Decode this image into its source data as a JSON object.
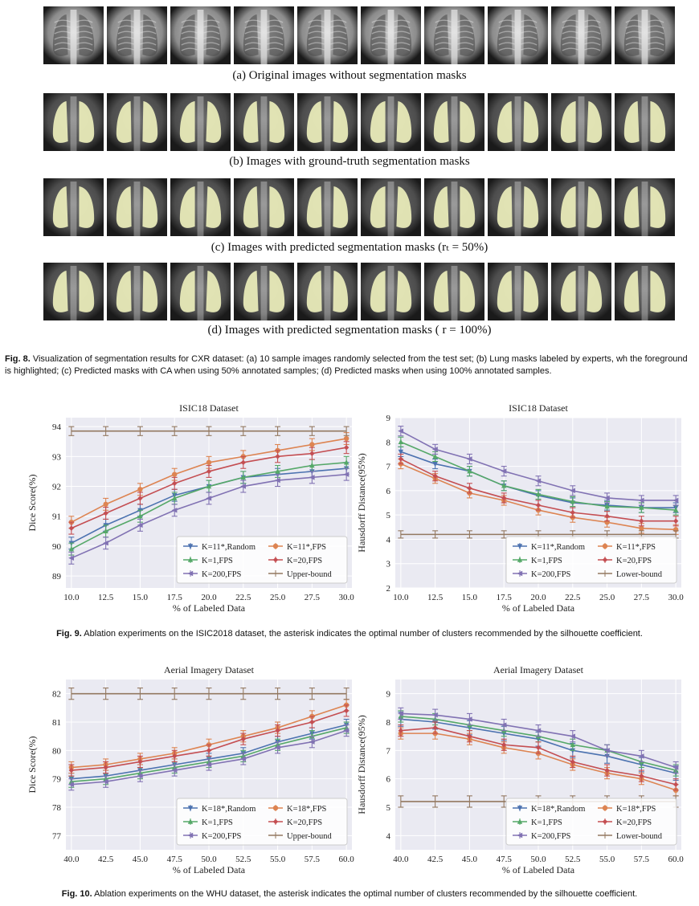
{
  "panels": [
    {
      "caption": "(a) Original images without segmentation masks",
      "mask": "none"
    },
    {
      "caption": "(b) Images with ground-truth segmentation masks",
      "mask": "gt"
    },
    {
      "caption": "(c) Images with predicted segmentation masks (rₜ = 50%)",
      "mask": "pred50"
    },
    {
      "caption": "(d) Images with predicted segmentation masks ( r = 100%)",
      "mask": "pred100"
    }
  ],
  "thumb_count": 10,
  "colors": {
    "mask": "#e8eab8",
    "random": "#4c72b0",
    "fps11": "#dd8452",
    "fps1": "#55a868",
    "fps20": "#c44e52",
    "fps200": "#8172b3",
    "bound": "#937860"
  },
  "fig8": {
    "label": "Fig. 8.",
    "text": "Visualization of segmentation results for CXR dataset: (a) 10 sample images randomly selected from the test set; (b) Lung masks labeled by experts, wh the foreground is highlighted; (c) Predicted masks with CA when using 50% annotated samples; (d) Predicted masks when using 100% annotated samples."
  },
  "fig9": {
    "label": "Fig. 9.",
    "text": "Ablation experiments on the ISIC2018 dataset, the asterisk indicates the optimal number of clusters recommended by the silhouette coefficient."
  },
  "fig10": {
    "label": "Fig. 10.",
    "text": "Ablation experiments on the WHU dataset, the asterisk indicates the optimal number of clusters recommended by the silhouette coefficient."
  },
  "chart_data": [
    {
      "id": "c1",
      "type": "line",
      "title": "ISIC18 Dataset",
      "xlabel": "% of Labeled Data",
      "ylabel": "Dice Score(%)",
      "x": [
        10.0,
        12.5,
        15.0,
        17.5,
        20.0,
        22.5,
        25.0,
        27.5,
        30.0
      ],
      "xticks": [
        "10.0",
        "12.5",
        "15.0",
        "17.5",
        "20.0",
        "22.5",
        "25.0",
        "27.5",
        "30.0"
      ],
      "xlim": [
        9.6,
        30.4
      ],
      "ylim": [
        88.6,
        94.3
      ],
      "yticks": [
        "89",
        "90",
        "91",
        "92",
        "93",
        "94"
      ],
      "legend": "bottom-right",
      "series": [
        {
          "name": "K=11*,Random",
          "color": "random",
          "values": [
            90.1,
            90.7,
            91.2,
            91.7,
            92.0,
            92.3,
            92.4,
            92.5,
            92.6
          ],
          "err": 0.2
        },
        {
          "name": "K=11*,FPS",
          "color": "fps11",
          "values": [
            90.8,
            91.4,
            91.9,
            92.4,
            92.8,
            93.0,
            93.2,
            93.4,
            93.6
          ],
          "err": 0.2
        },
        {
          "name": "K=1,FPS",
          "color": "fps1",
          "values": [
            89.9,
            90.5,
            91.0,
            91.6,
            92.0,
            92.3,
            92.5,
            92.7,
            92.8
          ],
          "err": 0.2
        },
        {
          "name": "K=20,FPS",
          "color": "fps20",
          "values": [
            90.6,
            91.1,
            91.6,
            92.1,
            92.5,
            92.8,
            93.0,
            93.1,
            93.3
          ],
          "err": 0.2
        },
        {
          "name": "K=200,FPS",
          "color": "fps200",
          "values": [
            89.6,
            90.1,
            90.7,
            91.2,
            91.6,
            92.0,
            92.2,
            92.3,
            92.4
          ],
          "err": 0.2
        },
        {
          "name": "Upper-bound",
          "color": "bound",
          "values": [
            93.85,
            93.85,
            93.85,
            93.85,
            93.85,
            93.85,
            93.85,
            93.85,
            93.85
          ],
          "err": 0.15
        }
      ]
    },
    {
      "id": "c2",
      "type": "line",
      "title": "ISIC18 Dataset",
      "xlabel": "% of Labeled Data",
      "ylabel": "Hausdorff Distance(95%)",
      "x": [
        10.0,
        12.5,
        15.0,
        17.5,
        20.0,
        22.5,
        25.0,
        27.5,
        30.0
      ],
      "xticks": [
        "10.0",
        "12.5",
        "15.0",
        "17.5",
        "20.0",
        "22.5",
        "25.0",
        "27.5",
        "30.0"
      ],
      "xlim": [
        9.6,
        30.4
      ],
      "ylim": [
        2.0,
        9.0
      ],
      "yticks": [
        "2",
        "3",
        "4",
        "5",
        "6",
        "7",
        "8",
        "9"
      ],
      "legend": "bottom-right",
      "series": [
        {
          "name": "K=11*,Random",
          "color": "random",
          "values": [
            7.6,
            7.1,
            6.8,
            6.2,
            5.8,
            5.5,
            5.4,
            5.3,
            5.3
          ],
          "err": 0.2
        },
        {
          "name": "K=11*,FPS",
          "color": "fps11",
          "values": [
            7.1,
            6.5,
            5.9,
            5.6,
            5.2,
            4.9,
            4.7,
            4.45,
            4.4
          ],
          "err": 0.2
        },
        {
          "name": "K=1,FPS",
          "color": "fps1",
          "values": [
            8.0,
            7.4,
            6.8,
            6.2,
            5.85,
            5.55,
            5.35,
            5.3,
            5.2
          ],
          "err": 0.2
        },
        {
          "name": "K=20,FPS",
          "color": "fps20",
          "values": [
            7.3,
            6.6,
            6.1,
            5.7,
            5.4,
            5.1,
            4.95,
            4.75,
            4.75
          ],
          "err": 0.2
        },
        {
          "name": "K=200,FPS",
          "color": "fps200",
          "values": [
            8.45,
            7.7,
            7.3,
            6.8,
            6.4,
            6.0,
            5.7,
            5.6,
            5.6
          ],
          "err": 0.2
        },
        {
          "name": "Lower-bound",
          "color": "bound",
          "values": [
            4.2,
            4.2,
            4.2,
            4.2,
            4.2,
            4.2,
            4.2,
            4.2,
            4.2
          ],
          "err": 0.15
        }
      ]
    },
    {
      "id": "c3",
      "type": "line",
      "title": "Aerial Imagery Dataset",
      "xlabel": "% of Labeled Data",
      "ylabel": "Dice Score(%)",
      "x": [
        40.0,
        42.5,
        45.0,
        47.5,
        50.0,
        52.5,
        55.0,
        57.5,
        60.0
      ],
      "xticks": [
        "40.0",
        "42.5",
        "45.0",
        "47.5",
        "50.0",
        "52.5",
        "55.0",
        "57.5",
        "60.0"
      ],
      "xlim": [
        39.6,
        60.4
      ],
      "ylim": [
        76.5,
        82.5
      ],
      "yticks": [
        "77",
        "78",
        "79",
        "80",
        "81",
        "82"
      ],
      "legend": "bottom-right",
      "series": [
        {
          "name": "K=18*,Random",
          "color": "random",
          "values": [
            79.0,
            79.1,
            79.3,
            79.5,
            79.7,
            79.9,
            80.3,
            80.6,
            80.9
          ],
          "err": 0.2
        },
        {
          "name": "K=18*,FPS",
          "color": "fps11",
          "values": [
            79.4,
            79.5,
            79.7,
            79.9,
            80.2,
            80.5,
            80.8,
            81.2,
            81.6
          ],
          "err": 0.2
        },
        {
          "name": "K=1,FPS",
          "color": "fps1",
          "values": [
            78.9,
            79.0,
            79.2,
            79.4,
            79.6,
            79.8,
            80.2,
            80.5,
            80.8
          ],
          "err": 0.2
        },
        {
          "name": "K=20,FPS",
          "color": "fps20",
          "values": [
            79.3,
            79.4,
            79.6,
            79.8,
            80.0,
            80.4,
            80.7,
            81.0,
            81.4
          ],
          "err": 0.2
        },
        {
          "name": "K=200,FPS",
          "color": "fps200",
          "values": [
            78.8,
            78.9,
            79.1,
            79.3,
            79.5,
            79.7,
            80.1,
            80.3,
            80.7
          ],
          "err": 0.2
        },
        {
          "name": "Upper-bound",
          "color": "bound",
          "values": [
            82.0,
            82.0,
            82.0,
            82.0,
            82.0,
            82.0,
            82.0,
            82.0,
            82.0
          ],
          "err": 0.2
        }
      ]
    },
    {
      "id": "c4",
      "type": "line",
      "title": "Aerial Imagery Dataset",
      "xlabel": "% of Labeled Data",
      "ylabel": "Hausdorff Distance(95%)",
      "x": [
        40.0,
        42.5,
        45.0,
        47.5,
        50.0,
        52.5,
        55.0,
        57.5,
        60.0
      ],
      "xticks": [
        "40.0",
        "42.5",
        "45.0",
        "47.5",
        "50.0",
        "52.5",
        "55.0",
        "57.5",
        "60.0"
      ],
      "xlim": [
        39.6,
        60.4
      ],
      "ylim": [
        3.5,
        9.5
      ],
      "yticks": [
        "4",
        "5",
        "6",
        "7",
        "8",
        "9"
      ],
      "legend": "bottom-right",
      "series": [
        {
          "name": "K=18*,Random",
          "color": "random",
          "values": [
            8.1,
            8.0,
            7.8,
            7.6,
            7.4,
            7.0,
            6.8,
            6.5,
            6.2
          ],
          "err": 0.25
        },
        {
          "name": "K=18*,FPS",
          "color": "fps11",
          "values": [
            7.6,
            7.6,
            7.4,
            7.1,
            6.9,
            6.5,
            6.2,
            6.0,
            5.6
          ],
          "err": 0.2
        },
        {
          "name": "K=1,FPS",
          "color": "fps1",
          "values": [
            8.2,
            8.1,
            7.9,
            7.7,
            7.5,
            7.2,
            7.0,
            6.6,
            6.3
          ],
          "err": 0.2
        },
        {
          "name": "K=20,FPS",
          "color": "fps20",
          "values": [
            7.7,
            7.8,
            7.5,
            7.2,
            7.1,
            6.6,
            6.3,
            6.1,
            5.8
          ],
          "err": 0.2
        },
        {
          "name": "K=200,FPS",
          "color": "fps200",
          "values": [
            8.3,
            8.25,
            8.1,
            7.9,
            7.7,
            7.5,
            7.0,
            6.8,
            6.4
          ],
          "err": 0.2
        },
        {
          "name": "Lower-bound",
          "color": "bound",
          "values": [
            5.2,
            5.2,
            5.2,
            5.2,
            5.2,
            5.2,
            5.2,
            5.2,
            5.2
          ],
          "err": 0.2
        }
      ]
    }
  ]
}
